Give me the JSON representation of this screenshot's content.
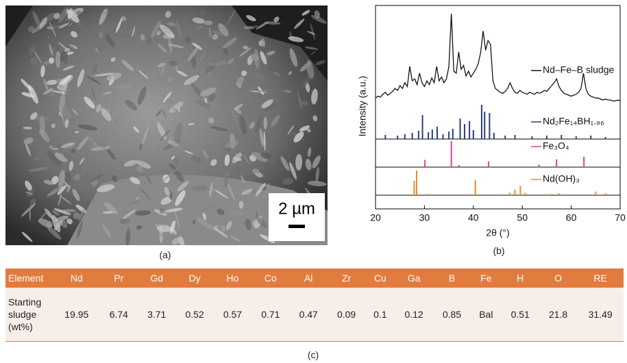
{
  "panel_a": {
    "scale_label": "2 µm",
    "caption": "(a)"
  },
  "chart_data": {
    "type": "line",
    "caption": "(b)",
    "xlabel": "2θ (°)",
    "ylabel": "Intensity (a.u.)",
    "xlim": [
      20,
      70
    ],
    "xticks": [
      20,
      30,
      40,
      50,
      60,
      70
    ],
    "ylim": [
      0,
      100
    ],
    "series": [
      {
        "name": "Nd–Fe–B sludge",
        "color": "#111111",
        "style": "line",
        "x": [
          20,
          20.5,
          21,
          21.5,
          22,
          22.5,
          23,
          23.5,
          24,
          24.5,
          25,
          25.5,
          26,
          26.5,
          27,
          27.5,
          28,
          28.5,
          29,
          29.5,
          30,
          30.5,
          31,
          31.5,
          32,
          32.5,
          33,
          33.5,
          34,
          34.5,
          35,
          35.5,
          36,
          36.5,
          37,
          37.5,
          38,
          38.5,
          39,
          39.5,
          40,
          40.5,
          41,
          41.5,
          42,
          42.5,
          43,
          43.5,
          44,
          44.5,
          45,
          45.5,
          46,
          46.5,
          47,
          47.5,
          48,
          48.5,
          49,
          49.5,
          50,
          50.5,
          51,
          51.5,
          52,
          52.5,
          53,
          53.5,
          54,
          54.5,
          55,
          55.5,
          56,
          56.5,
          57,
          57.5,
          58,
          58.5,
          59,
          59.5,
          60,
          60.5,
          61,
          61.5,
          62,
          62.5,
          63,
          63.5,
          64,
          64.5,
          65,
          65.5,
          66,
          66.5,
          67,
          67.5,
          68,
          68.5,
          69,
          69.5,
          70
        ],
        "values": [
          12,
          14,
          13,
          16,
          18,
          15,
          17,
          19,
          22,
          20,
          25,
          22,
          28,
          24,
          45,
          30,
          32,
          26,
          38,
          28,
          24,
          30,
          26,
          33,
          28,
          45,
          30,
          34,
          28,
          32,
          45,
          100,
          40,
          38,
          60,
          42,
          46,
          35,
          40,
          34,
          38,
          42,
          48,
          60,
          82,
          62,
          72,
          68,
          30,
          22,
          20,
          18,
          17,
          19,
          22,
          28,
          22,
          18,
          17,
          20,
          18,
          17,
          16,
          18,
          17,
          16,
          18,
          17,
          18,
          20,
          19,
          22,
          25,
          28,
          32,
          24,
          20,
          17,
          16,
          15,
          14,
          15,
          16,
          18,
          22,
          38,
          22,
          16,
          14,
          13,
          12,
          12,
          11,
          10,
          11,
          10,
          10,
          9,
          9,
          10,
          9
        ]
      },
      {
        "name": "Nd₂Fe₁₄BH₁.₈₆",
        "color": "#2b3a7a",
        "style": "stick",
        "x": [
          22,
          24.5,
          26,
          27.5,
          28.8,
          29.6,
          30.8,
          31.6,
          32.6,
          33.8,
          35,
          35.8,
          37.3,
          38.2,
          39.2,
          40,
          41.7,
          42.3,
          43.3,
          44.2,
          46.5,
          48.5,
          52,
          55,
          58,
          61,
          64,
          67
        ],
        "values": [
          12,
          10,
          14,
          18,
          24,
          70,
          20,
          28,
          36,
          14,
          22,
          30,
          60,
          44,
          52,
          26,
          100,
          80,
          76,
          18,
          10,
          12,
          8,
          10,
          12,
          8,
          10,
          6
        ]
      },
      {
        "name": "Fe₃O₄",
        "color": "#e0408a",
        "style": "stick",
        "x": [
          30.1,
          35.5,
          37.1,
          43.1,
          53.4,
          57,
          62.6
        ],
        "values": [
          28,
          100,
          8,
          22,
          10,
          30,
          40
        ]
      },
      {
        "name": "Nd(OH)₃",
        "color": "#e8892a",
        "style": "stick",
        "x": [
          27.9,
          28.4,
          30.6,
          40.4,
          47.4,
          48.5,
          49.6,
          50.6,
          56,
          57.5,
          65,
          67
        ],
        "values": [
          58,
          100,
          5,
          62,
          10,
          22,
          38,
          10,
          5,
          8,
          15,
          8
        ]
      }
    ]
  },
  "table": {
    "caption": "(c)",
    "header": [
      "Element",
      "Nd",
      "Pr",
      "Gd",
      "Dy",
      "Ho",
      "Co",
      "Al",
      "Zr",
      "Cu",
      "Ga",
      "B",
      "Fe",
      "H",
      "O",
      "RE"
    ],
    "rows": [
      [
        "Starting sludge (wt%)",
        "19.95",
        "6.74",
        "3.71",
        "0.52",
        "0.57",
        "0.71",
        "0.47",
        "0.09",
        "0.1",
        "0.12",
        "0.85",
        "Bal",
        "0.51",
        "21.8",
        "31.49"
      ]
    ]
  }
}
